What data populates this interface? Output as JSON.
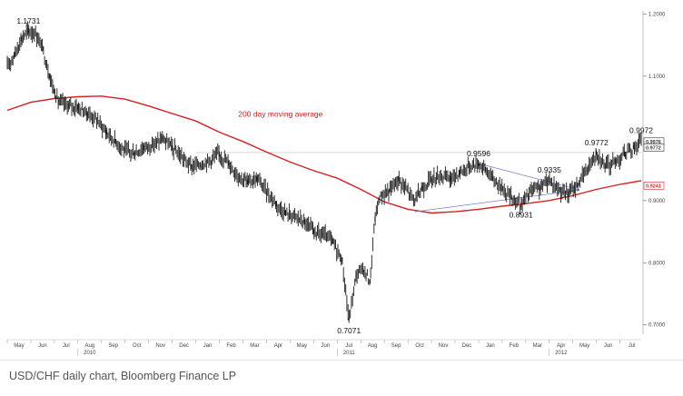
{
  "caption": "USD/CHF daily chart, Bloomberg Finance LP",
  "chart_data": {
    "type": "line",
    "series_style": "daily price bars (high-low)",
    "title": "",
    "xlabel": "",
    "ylabel": "",
    "months": [
      "May",
      "Jun",
      "Jul",
      "Aug",
      "Sep",
      "Oct",
      "Nov",
      "Dec",
      "Jan",
      "Feb",
      "Mar",
      "Apr",
      "May",
      "Jun",
      "Jul",
      "Aug",
      "Sep",
      "Oct",
      "Nov",
      "Dec",
      "Jan",
      "Feb",
      "Mar",
      "Apr",
      "May",
      "Jun",
      "Jul"
    ],
    "years": [
      {
        "label": "2010",
        "month_index": 3
      },
      {
        "label": "2011",
        "month_index": 14
      },
      {
        "label": "2012",
        "month_index": 23
      }
    ],
    "y_ticks": [
      "1.2000",
      "1.1000",
      "0.9000",
      "0.8000",
      "0.7000"
    ],
    "ylim": [
      0.685,
      1.205
    ],
    "xlim": [
      0,
      26.9
    ],
    "price_path": [
      [
        0.0,
        1.115
      ],
      [
        0.3,
        1.135
      ],
      [
        0.6,
        1.16
      ],
      [
        0.9,
        1.1731
      ],
      [
        1.2,
        1.168
      ],
      [
        1.5,
        1.145
      ],
      [
        1.8,
        1.1
      ],
      [
        2.0,
        1.075
      ],
      [
        2.2,
        1.058
      ],
      [
        2.6,
        1.052
      ],
      [
        3.0,
        1.05
      ],
      [
        3.4,
        1.04
      ],
      [
        3.8,
        1.03
      ],
      [
        4.2,
        1.01
      ],
      [
        4.6,
        0.995
      ],
      [
        5.0,
        0.98
      ],
      [
        5.4,
        0.976
      ],
      [
        5.8,
        0.985
      ],
      [
        6.2,
        0.99
      ],
      [
        6.6,
        1.0
      ],
      [
        7.0,
        0.985
      ],
      [
        7.4,
        0.97
      ],
      [
        7.8,
        0.955
      ],
      [
        8.2,
        0.958
      ],
      [
        8.6,
        0.965
      ],
      [
        9.0,
        0.975
      ],
      [
        9.4,
        0.96
      ],
      [
        9.8,
        0.94
      ],
      [
        10.2,
        0.93
      ],
      [
        10.6,
        0.935
      ],
      [
        11.0,
        0.915
      ],
      [
        11.4,
        0.895
      ],
      [
        11.8,
        0.88
      ],
      [
        12.2,
        0.875
      ],
      [
        12.6,
        0.865
      ],
      [
        13.0,
        0.85
      ],
      [
        13.4,
        0.845
      ],
      [
        13.8,
        0.835
      ],
      [
        14.2,
        0.805
      ],
      [
        14.5,
        0.7071
      ],
      [
        14.8,
        0.78
      ],
      [
        15.1,
        0.79
      ],
      [
        15.4,
        0.77
      ],
      [
        15.6,
        0.87
      ],
      [
        15.8,
        0.905
      ],
      [
        16.2,
        0.915
      ],
      [
        16.6,
        0.935
      ],
      [
        17.0,
        0.915
      ],
      [
        17.3,
        0.9
      ],
      [
        17.6,
        0.92
      ],
      [
        18.0,
        0.935
      ],
      [
        18.4,
        0.94
      ],
      [
        18.8,
        0.935
      ],
      [
        19.2,
        0.945
      ],
      [
        19.6,
        0.955
      ],
      [
        20.0,
        0.9596
      ],
      [
        20.3,
        0.95
      ],
      [
        20.6,
        0.935
      ],
      [
        21.0,
        0.92
      ],
      [
        21.4,
        0.905
      ],
      [
        21.8,
        0.8931
      ],
      [
        22.2,
        0.915
      ],
      [
        22.6,
        0.92
      ],
      [
        23.0,
        0.9335
      ],
      [
        23.4,
        0.918
      ],
      [
        23.8,
        0.91
      ],
      [
        24.2,
        0.925
      ],
      [
        24.6,
        0.95
      ],
      [
        25.0,
        0.9772
      ],
      [
        25.4,
        0.955
      ],
      [
        25.8,
        0.963
      ],
      [
        26.2,
        0.975
      ],
      [
        26.6,
        0.985
      ],
      [
        26.9,
        0.9972
      ]
    ],
    "moving_average": {
      "name": "200 day moving average",
      "color": "#d62020",
      "points": [
        [
          0.0,
          1.045
        ],
        [
          1.0,
          1.058
        ],
        [
          2.0,
          1.064
        ],
        [
          3.0,
          1.067
        ],
        [
          4.0,
          1.068
        ],
        [
          5.0,
          1.063
        ],
        [
          6.0,
          1.052
        ],
        [
          7.0,
          1.04
        ],
        [
          8.0,
          1.028
        ],
        [
          9.0,
          1.01
        ],
        [
          10.0,
          0.995
        ],
        [
          11.0,
          0.978
        ],
        [
          12.0,
          0.962
        ],
        [
          13.0,
          0.948
        ],
        [
          14.0,
          0.936
        ],
        [
          15.0,
          0.918
        ],
        [
          16.0,
          0.898
        ],
        [
          17.0,
          0.886
        ],
        [
          18.0,
          0.88
        ],
        [
          19.0,
          0.882
        ],
        [
          20.0,
          0.886
        ],
        [
          21.0,
          0.891
        ],
        [
          22.0,
          0.895
        ],
        [
          23.0,
          0.9
        ],
        [
          24.0,
          0.908
        ],
        [
          25.0,
          0.918
        ],
        [
          26.0,
          0.926
        ],
        [
          26.9,
          0.932
        ]
      ]
    },
    "annotations": [
      {
        "label": "1.1731",
        "x": 0.9,
        "y": 1.1731,
        "position": "above"
      },
      {
        "label": "0.7071",
        "x": 14.5,
        "y": 0.7071,
        "position": "below"
      },
      {
        "label": "0.9596",
        "x": 20.0,
        "y": 0.9596,
        "position": "above"
      },
      {
        "label": "0.9335",
        "x": 23.0,
        "y": 0.9335,
        "position": "above"
      },
      {
        "label": "0.8931",
        "x": 21.8,
        "y": 0.8931,
        "position": "below"
      },
      {
        "label": "0.9772",
        "x": 25.0,
        "y": 0.9772,
        "position": "above"
      },
      {
        "label": "0.9972",
        "x": 26.9,
        "y": 0.9972,
        "position": "above"
      }
    ],
    "horizontal_line": {
      "y": 0.9772,
      "color": "#bbbbbb",
      "x_start": 8.0
    },
    "trendlines": [
      {
        "from": [
          20.0,
          0.9596
        ],
        "to": [
          24.3,
          0.917
        ],
        "color": "#7a7fd0"
      },
      {
        "from": [
          17.3,
          0.882
        ],
        "to": [
          24.3,
          0.917
        ],
        "color": "#7a7fd0"
      }
    ],
    "price_boxes": [
      {
        "label": "0.9976",
        "y": 0.995,
        "color": "#333333",
        "bg": "#ffffff"
      },
      {
        "label": "0.9772",
        "y": 0.985,
        "color": "#333333",
        "bg": "#ffffff"
      },
      {
        "label": "0.9241",
        "y": 0.9241,
        "color": "#d62020",
        "bg": "#ffffff"
      }
    ],
    "ma_label_pos": {
      "x": 9.8,
      "y": 1.035
    }
  }
}
